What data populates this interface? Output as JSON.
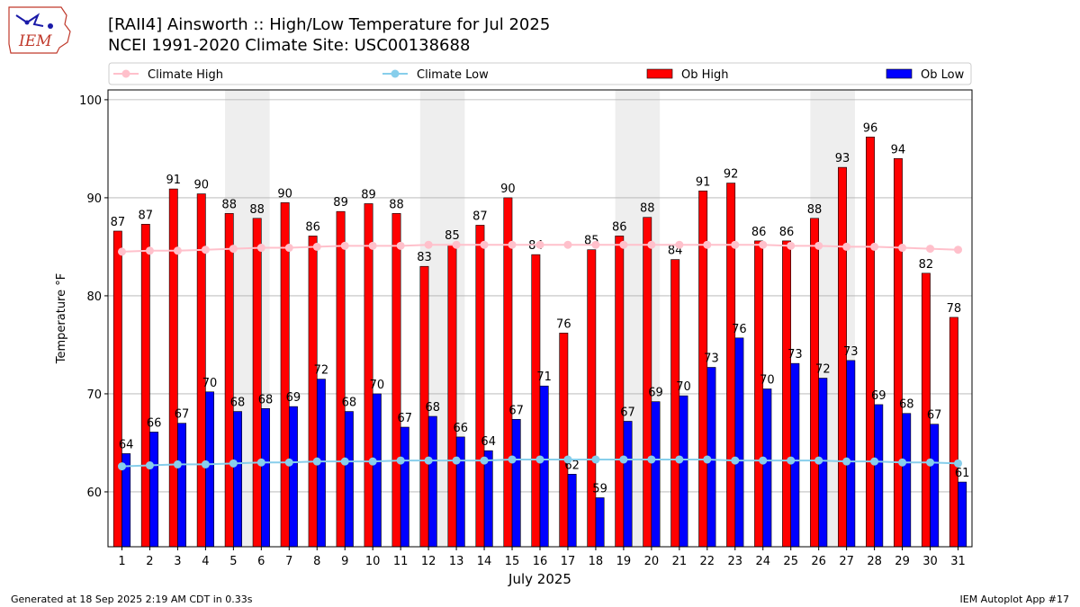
{
  "header": {
    "title_line1": "[RAII4] Ainsworth :: High/Low Temperature for Jul 2025",
    "title_line2": "NCEI 1991-2020 Climate Site: USC00138688"
  },
  "logo": {
    "text": "IEM"
  },
  "footer": {
    "generated": "Generated at 18 Sep 2025 2:19 AM CDT in 0.33s",
    "app": "IEM Autoplot App #17"
  },
  "colors": {
    "ob_high": "#ff0000",
    "ob_low": "#0000ff",
    "climate_high": "#ffc0cb",
    "climate_low": "#87ceeb",
    "weekend_shade": "#eeeeee",
    "grid": "#b0b0b0"
  },
  "chart_data": {
    "type": "bar",
    "title": "[RAII4] Ainsworth :: High/Low Temperature for Jul 2025",
    "subtitle": "NCEI 1991-2020 Climate Site: USC00138688",
    "xlabel": "July 2025",
    "ylabel": "Temperature °F",
    "ylim": [
      54.4,
      101.0
    ],
    "yticks": [
      60,
      70,
      80,
      90,
      100
    ],
    "grid": true,
    "legend_position": "top",
    "legend": [
      "Climate High",
      "Climate Low",
      "Ob High",
      "Ob Low"
    ],
    "categories": [
      "1",
      "2",
      "3",
      "4",
      "5",
      "6",
      "7",
      "8",
      "9",
      "10",
      "11",
      "12",
      "13",
      "14",
      "15",
      "16",
      "17",
      "18",
      "19",
      "20",
      "21",
      "22",
      "23",
      "24",
      "25",
      "26",
      "27",
      "28",
      "29",
      "30",
      "31"
    ],
    "shaded_days": [
      [
        5,
        6
      ],
      [
        12,
        13
      ],
      [
        19,
        20
      ],
      [
        26,
        27
      ]
    ],
    "series": [
      {
        "name": "Ob High",
        "kind": "bar",
        "values": [
          86.6,
          87.3,
          90.9,
          90.4,
          88.4,
          87.9,
          89.5,
          86.1,
          88.6,
          89.4,
          88.4,
          83.0,
          85.2,
          87.2,
          90.0,
          84.2,
          76.2,
          84.7,
          86.1,
          88.0,
          83.7,
          90.7,
          91.5,
          85.6,
          85.6,
          87.9,
          93.1,
          96.2,
          94.0,
          82.3,
          77.8
        ],
        "labels": [
          "87",
          "87",
          "91",
          "90",
          "88",
          "88",
          "90",
          "86",
          "89",
          "89",
          "88",
          "83",
          "85",
          "87",
          "90",
          "84",
          "76",
          "85",
          "86",
          "88",
          "84",
          "91",
          "92",
          "86",
          "86",
          "88",
          "93",
          "96",
          "94",
          "82",
          "78"
        ]
      },
      {
        "name": "Ob Low",
        "kind": "bar",
        "values": [
          63.9,
          66.1,
          67.0,
          70.2,
          68.2,
          68.5,
          68.7,
          71.5,
          68.2,
          70.0,
          66.6,
          67.7,
          65.6,
          64.2,
          67.4,
          70.8,
          61.8,
          59.4,
          67.2,
          69.2,
          69.8,
          72.7,
          75.7,
          70.5,
          73.1,
          71.6,
          73.4,
          68.9,
          68.0,
          66.9,
          61.0
        ],
        "labels": [
          "64",
          "66",
          "67",
          "70",
          "68",
          "68",
          "69",
          "72",
          "68",
          "70",
          "67",
          "68",
          "66",
          "64",
          "67",
          "71",
          "62",
          "59",
          "67",
          "69",
          "70",
          "73",
          "76",
          "70",
          "73",
          "72",
          "73",
          "69",
          "68",
          "67",
          "61"
        ]
      },
      {
        "name": "Climate High",
        "kind": "line",
        "values": [
          84.5,
          84.6,
          84.6,
          84.7,
          84.8,
          84.9,
          84.9,
          85.0,
          85.1,
          85.1,
          85.1,
          85.2,
          85.2,
          85.2,
          85.2,
          85.2,
          85.2,
          85.2,
          85.2,
          85.2,
          85.2,
          85.2,
          85.2,
          85.2,
          85.1,
          85.1,
          85.0,
          85.0,
          84.9,
          84.8,
          84.7
        ]
      },
      {
        "name": "Climate Low",
        "kind": "line",
        "values": [
          62.6,
          62.7,
          62.8,
          62.8,
          62.9,
          63.0,
          63.0,
          63.1,
          63.1,
          63.1,
          63.2,
          63.2,
          63.2,
          63.2,
          63.3,
          63.3,
          63.3,
          63.3,
          63.3,
          63.3,
          63.3,
          63.3,
          63.2,
          63.2,
          63.2,
          63.2,
          63.1,
          63.1,
          63.0,
          63.0,
          62.9
        ]
      }
    ]
  }
}
